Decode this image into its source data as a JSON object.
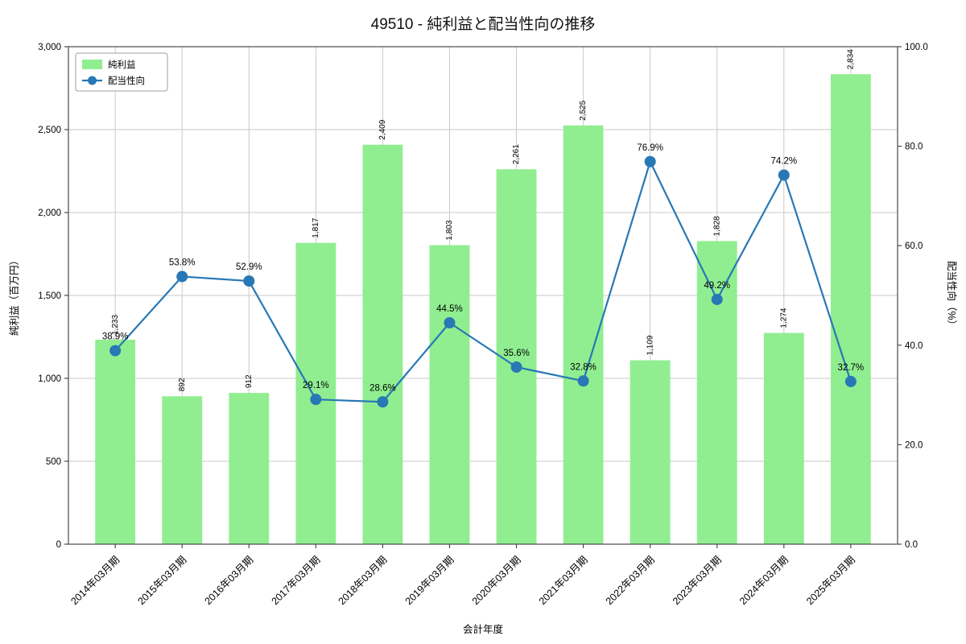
{
  "chart_data": {
    "type": "combo-bar-line",
    "title": "49510 - 純利益と配当性向の推移",
    "xlabel": "会計年度",
    "categories": [
      "2014年03月期",
      "2015年03月期",
      "2016年03月期",
      "2017年03月期",
      "2018年03月期",
      "2019年03月期",
      "2020年03月期",
      "2021年03月期",
      "2022年03月期",
      "2023年03月期",
      "2024年03月期",
      "2025年03月期"
    ],
    "series": [
      {
        "name": "純利益",
        "type": "bar",
        "axis": "left",
        "color": "#90ee90",
        "values": [
          1233,
          892,
          912,
          1817,
          2409,
          1803,
          2261,
          2525,
          1109,
          1828,
          1274,
          2834
        ],
        "value_labels": [
          "1,233",
          "892",
          "912",
          "1,817",
          "2,409",
          "1,803",
          "2,261",
          "2,525",
          "1,109",
          "1,828",
          "1,274",
          "2,834"
        ]
      },
      {
        "name": "配当性向",
        "type": "line",
        "axis": "right",
        "color": "#2878b5",
        "values": [
          38.9,
          53.8,
          52.9,
          29.1,
          28.6,
          44.5,
          35.6,
          32.8,
          76.9,
          49.2,
          74.2,
          32.7
        ],
        "point_labels": [
          "38.9%",
          "53.8%",
          "52.9%",
          "29.1%",
          "28.6%",
          "44.5%",
          "35.6%",
          "32.8%",
          "76.9%",
          "49.2%",
          "74.2%",
          "32.7%"
        ]
      }
    ],
    "left_axis": {
      "label": "純利益（百万円）",
      "min": 0,
      "max": 3000,
      "step": 500,
      "tick_labels": [
        "0",
        "500",
        "1,000",
        "1,500",
        "2,000",
        "2,500",
        "3,000"
      ]
    },
    "right_axis": {
      "label": "配当性向（%）",
      "min": 0,
      "max": 100,
      "step": 20,
      "tick_labels": [
        "0.0",
        "20.0",
        "40.0",
        "60.0",
        "80.0",
        "100.0"
      ]
    },
    "grid": true,
    "legend": {
      "position": "upper-left",
      "entries": [
        "純利益",
        "配当性向"
      ]
    },
    "colors": {
      "bar": "#90ee90",
      "line": "#2878b5",
      "grid": "#c9c9c9",
      "spine": "#4a4a4a",
      "text": "#000000"
    }
  }
}
